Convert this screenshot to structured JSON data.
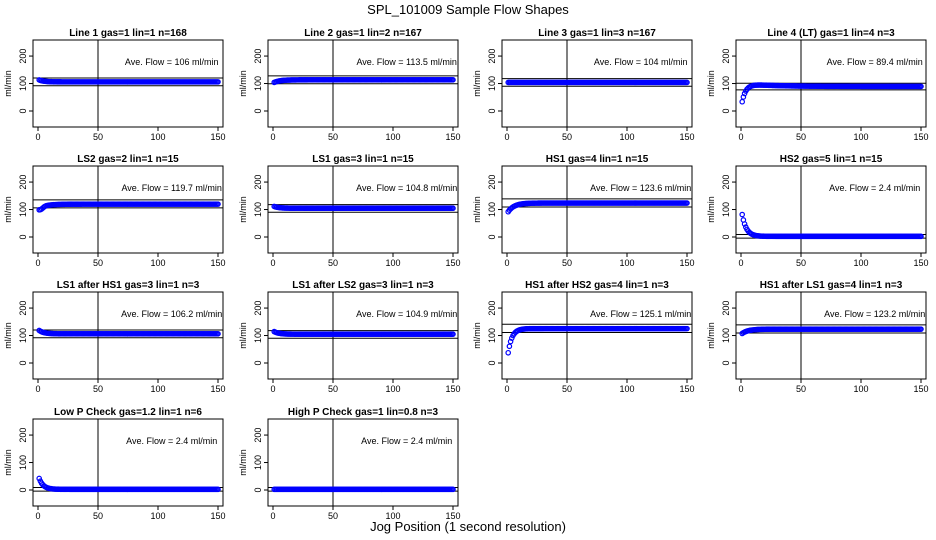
{
  "title": "SPL_101009  Sample Flow Shapes",
  "xlabel": "Jog Position (1 second resolution)",
  "ylabel": "ml/min",
  "colors": {
    "points": "#0000ff",
    "axes": "#000000"
  },
  "chart_data": [
    {
      "type": "scatter",
      "title": "Line 1 gas=1 lin=1 n=168",
      "annotation": "Ave. Flow =  106  ml/min",
      "xlim": [
        0,
        150
      ],
      "ylim": [
        0,
        200
      ],
      "xticks": [
        "0",
        "50",
        "100",
        "150"
      ],
      "yticks": [
        "0",
        "100",
        "200"
      ],
      "hlines": [
        120,
        92
      ],
      "vline": 50,
      "shape": "flat",
      "start": 115,
      "level": 106
    },
    {
      "type": "scatter",
      "title": "Line 2 gas=1 lin=2 n=167",
      "annotation": "Ave. Flow =  113.5  ml/min",
      "xlim": [
        0,
        150
      ],
      "ylim": [
        0,
        200
      ],
      "xticks": [
        "0",
        "50",
        "100",
        "150"
      ],
      "yticks": [
        "0",
        "100",
        "200"
      ],
      "hlines": [
        128,
        99
      ],
      "vline": 50,
      "shape": "rise",
      "start": 102,
      "level": 113.5
    },
    {
      "type": "scatter",
      "title": "Line 3 gas=1 lin=3 n=167",
      "annotation": "Ave. Flow =  104  ml/min",
      "xlim": [
        0,
        150
      ],
      "ylim": [
        0,
        200
      ],
      "xticks": [
        "0",
        "50",
        "100",
        "150"
      ],
      "yticks": [
        "0",
        "100",
        "200"
      ],
      "hlines": [
        118,
        90
      ],
      "vline": 50,
      "shape": "flat",
      "start": 104,
      "level": 104
    },
    {
      "type": "scatter",
      "title": "Line 4 (LT) gas=1 lin=4 n=3",
      "annotation": "Ave. Flow =  89.4  ml/min",
      "xlim": [
        0,
        150
      ],
      "ylim": [
        0,
        200
      ],
      "xticks": [
        "0",
        "50",
        "100",
        "150"
      ],
      "yticks": [
        "0",
        "100",
        "200"
      ],
      "hlines": [
        101,
        77
      ],
      "vline": 50,
      "shape": "startup",
      "start": 10,
      "level": 89.4,
      "peak": 100
    },
    {
      "type": "scatter",
      "title": "LS2 gas=2 lin=1 n=15",
      "annotation": "Ave. Flow =  119.7  ml/min",
      "xlim": [
        0,
        150
      ],
      "ylim": [
        0,
        200
      ],
      "xticks": [
        "0",
        "50",
        "100",
        "150"
      ],
      "yticks": [
        "0",
        "100",
        "200"
      ],
      "hlines": [
        135,
        106
      ],
      "vline": 50,
      "shape": "dip",
      "start": 106,
      "level": 119.7
    },
    {
      "type": "scatter",
      "title": "LS1 gas=3 lin=1 n=15",
      "annotation": "Ave. Flow =  104.8  ml/min",
      "xlim": [
        0,
        150
      ],
      "ylim": [
        0,
        200
      ],
      "xticks": [
        "0",
        "50",
        "100",
        "150"
      ],
      "yticks": [
        "0",
        "100",
        "200"
      ],
      "hlines": [
        118,
        90
      ],
      "vline": 50,
      "shape": "flat",
      "start": 113,
      "level": 104.8
    },
    {
      "type": "scatter",
      "title": "HS1 gas=4 lin=1 n=15",
      "annotation": "Ave. Flow =  123.6  ml/min",
      "xlim": [
        0,
        150
      ],
      "ylim": [
        0,
        200
      ],
      "xticks": [
        "0",
        "50",
        "100",
        "150"
      ],
      "yticks": [
        "0",
        "100",
        "200"
      ],
      "hlines": [
        139,
        109
      ],
      "vline": 50,
      "shape": "rise",
      "start": 85,
      "level": 123.6
    },
    {
      "type": "scatter",
      "title": "HS2 gas=5 lin=1 n=15",
      "annotation": "Ave. Flow =  2.4  ml/min",
      "xlim": [
        0,
        150
      ],
      "ylim": [
        0,
        200
      ],
      "xticks": [
        "0",
        "50",
        "100",
        "150"
      ],
      "yticks": [
        "0",
        "100",
        "200"
      ],
      "hlines": [
        9,
        -4
      ],
      "vline": 50,
      "shape": "decay",
      "start": 108,
      "level": 2.4
    },
    {
      "type": "scatter",
      "title": "LS1 after HS1 gas=3 lin=1 n=3",
      "annotation": "Ave. Flow =  106.2  ml/min",
      "xlim": [
        0,
        150
      ],
      "ylim": [
        0,
        200
      ],
      "xticks": [
        "0",
        "50",
        "100",
        "150"
      ],
      "yticks": [
        "0",
        "100",
        "200"
      ],
      "hlines": [
        120,
        92
      ],
      "vline": 50,
      "shape": "flat",
      "start": 122,
      "level": 106.2
    },
    {
      "type": "scatter",
      "title": "LS1 after LS2 gas=3 lin=1 n=3",
      "annotation": "Ave. Flow =  104.9  ml/min",
      "xlim": [
        0,
        150
      ],
      "ylim": [
        0,
        200
      ],
      "xticks": [
        "0",
        "50",
        "100",
        "150"
      ],
      "yticks": [
        "0",
        "100",
        "200"
      ],
      "hlines": [
        118,
        90
      ],
      "vline": 50,
      "shape": "flat",
      "start": 117,
      "level": 104.9
    },
    {
      "type": "scatter",
      "title": "HS1 after HS2 gas=4 lin=1 n=3",
      "annotation": "Ave. Flow =  125.1  ml/min",
      "xlim": [
        0,
        150
      ],
      "ylim": [
        0,
        200
      ],
      "xticks": [
        "0",
        "50",
        "100",
        "150"
      ],
      "yticks": [
        "0",
        "100",
        "200"
      ],
      "hlines": [
        141,
        111
      ],
      "vline": 50,
      "shape": "startup",
      "start": 5,
      "level": 125.1,
      "peak": 125.1
    },
    {
      "type": "scatter",
      "title": "HS1 after LS1 gas=4 lin=1 n=3",
      "annotation": "Ave. Flow =  123.2  ml/min",
      "xlim": [
        0,
        150
      ],
      "ylim": [
        0,
        200
      ],
      "xticks": [
        "0",
        "50",
        "100",
        "150"
      ],
      "yticks": [
        "0",
        "100",
        "200"
      ],
      "hlines": [
        139,
        109
      ],
      "vline": 50,
      "shape": "rise",
      "start": 104,
      "level": 123.2
    },
    {
      "type": "scatter",
      "title": "Low P Check gas=1.2 lin=1 n=6",
      "annotation": "Ave. Flow =  2.4  ml/min",
      "xlim": [
        0,
        150
      ],
      "ylim": [
        0,
        200
      ],
      "xticks": [
        "0",
        "50",
        "100",
        "150"
      ],
      "yticks": [
        "0",
        "100",
        "200"
      ],
      "hlines": [
        9,
        -4
      ],
      "vline": 50,
      "shape": "decay",
      "start": 55,
      "level": 2.4
    },
    {
      "type": "scatter",
      "title": "High P Check gas=1 lin=0.8 n=3",
      "annotation": "Ave. Flow =  2.4  ml/min",
      "xlim": [
        0,
        150
      ],
      "ylim": [
        0,
        200
      ],
      "xticks": [
        "0",
        "50",
        "100",
        "150"
      ],
      "yticks": [
        "0",
        "100",
        "200"
      ],
      "hlines": [
        9,
        -4
      ],
      "vline": 50,
      "shape": "flat",
      "start": 2.4,
      "level": 2.4
    }
  ]
}
